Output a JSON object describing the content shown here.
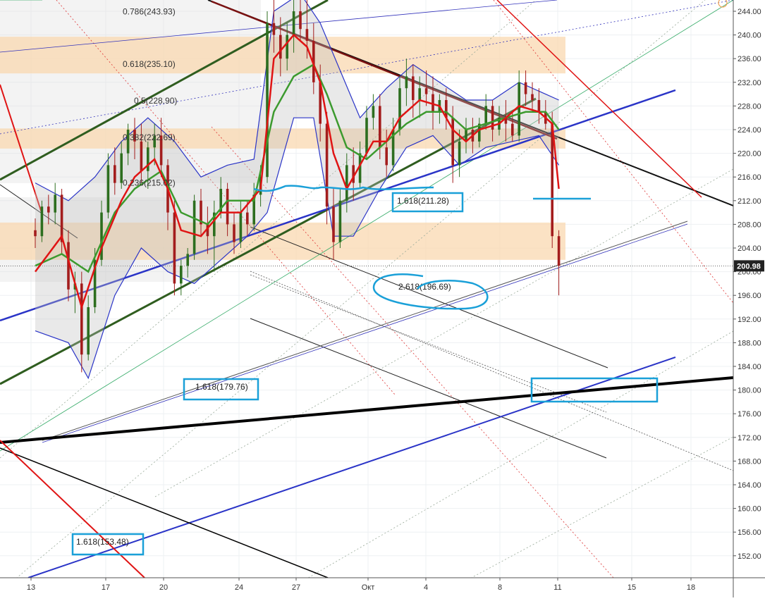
{
  "chart_data": {
    "type": "candlestick",
    "title": "",
    "xlabel": "",
    "ylabel": "",
    "ylim": [
      148,
      246
    ],
    "y_ticks": [
      152,
      156,
      160,
      164,
      168,
      172,
      176,
      180,
      184,
      188,
      192,
      196,
      200,
      204,
      208,
      212,
      216,
      220,
      224,
      228,
      232,
      236,
      240,
      244
    ],
    "x_ticks": [
      "13",
      "17",
      "20",
      "24",
      "27",
      "Окт",
      "4",
      "8",
      "11",
      "15",
      "18"
    ],
    "current_price": {
      "value": 200.98,
      "label": "200.98"
    },
    "fib_levels": [
      {
        "ratio": "0.786",
        "value": 243.93,
        "label": "0.786(243.93)"
      },
      {
        "ratio": "0.618",
        "value": 235.1,
        "label": "0.618(235.10)"
      },
      {
        "ratio": "0.5",
        "value": 228.9,
        "label": "0.5(228.90)"
      },
      {
        "ratio": "0.382",
        "value": 222.69,
        "label": "0.382(222.69)"
      },
      {
        "ratio": "0.236",
        "value": 215.02,
        "label": "0.236(215.02)"
      }
    ],
    "extension_labels": [
      {
        "value": 211.28,
        "label": "1.618(211.28)",
        "boxed": true
      },
      {
        "value": 196.69,
        "label": "2.618(196.69)",
        "boxed": false
      },
      {
        "value": 179.76,
        "label": "1.618(179.76)",
        "boxed": true
      },
      {
        "value": 153.48,
        "label": "1.618(153.48)",
        "boxed": true
      }
    ],
    "zones": [
      {
        "from": 233.5,
        "to": 239.7
      },
      {
        "from": 220.8,
        "to": 224.2
      },
      {
        "from": 202.0,
        "to": 208.3
      }
    ],
    "candles": [
      [
        5,
        207,
        209,
        204,
        206
      ],
      [
        6,
        206,
        212,
        205,
        211
      ],
      [
        7,
        211,
        213,
        208,
        210
      ],
      [
        8,
        210,
        215,
        208,
        213
      ],
      [
        9,
        213,
        214,
        203,
        205
      ],
      [
        10,
        205,
        207,
        195,
        197
      ],
      [
        11,
        197,
        200,
        193,
        198
      ],
      [
        12,
        198,
        200,
        183,
        186
      ],
      [
        13,
        186,
        196,
        185,
        194
      ],
      [
        14,
        194,
        204,
        193,
        202
      ],
      [
        15,
        202,
        212,
        201,
        210
      ],
      [
        16,
        210,
        220,
        209,
        218
      ],
      [
        17,
        218,
        221,
        213,
        215
      ],
      [
        18,
        215,
        222,
        214,
        220
      ],
      [
        19,
        220,
        225,
        218,
        224
      ],
      [
        20,
        224,
        226,
        219,
        222
      ],
      [
        21,
        222,
        225,
        215,
        217
      ],
      [
        22,
        217,
        222,
        214,
        221
      ],
      [
        23,
        221,
        225,
        218,
        223
      ],
      [
        24,
        223,
        226,
        216,
        218
      ],
      [
        25,
        218,
        219,
        207,
        210
      ],
      [
        26,
        210,
        212,
        196,
        198
      ],
      [
        27,
        198,
        202,
        196,
        201
      ],
      [
        28,
        201,
        204,
        199,
        203
      ],
      [
        29,
        203,
        213,
        202,
        212
      ],
      [
        30,
        212,
        214,
        206,
        208
      ],
      [
        31,
        208,
        211,
        203,
        206
      ],
      [
        32,
        206,
        212,
        200,
        210
      ],
      [
        33,
        210,
        216,
        209,
        214
      ],
      [
        34,
        214,
        215,
        206,
        208
      ],
      [
        35,
        208,
        210,
        203,
        205
      ],
      [
        36,
        205,
        212,
        204,
        210
      ],
      [
        37,
        210,
        212,
        206,
        208
      ],
      [
        38,
        208,
        215,
        207,
        213
      ],
      [
        39,
        213,
        218,
        211,
        216
      ],
      [
        40,
        216,
        244,
        215,
        242
      ],
      [
        41,
        242,
        248,
        237,
        240
      ],
      [
        42,
        240,
        243,
        233,
        236
      ],
      [
        43,
        236,
        242,
        234,
        240
      ],
      [
        44,
        240,
        246,
        237,
        244
      ],
      [
        45,
        244,
        248,
        239,
        241
      ],
      [
        46,
        241,
        246,
        236,
        239
      ],
      [
        47,
        239,
        242,
        230,
        232
      ],
      [
        48,
        232,
        235,
        222,
        225
      ],
      [
        49,
        225,
        227,
        208,
        211
      ],
      [
        50,
        211,
        214,
        202,
        205
      ],
      [
        51,
        205,
        214,
        204,
        212
      ],
      [
        52,
        212,
        220,
        210,
        218
      ],
      [
        53,
        218,
        221,
        212,
        215
      ],
      [
        54,
        215,
        222,
        214,
        220
      ],
      [
        55,
        220,
        228,
        219,
        226
      ],
      [
        56,
        226,
        230,
        224,
        228
      ],
      [
        57,
        228,
        230,
        219,
        221
      ],
      [
        58,
        221,
        224,
        216,
        218
      ],
      [
        59,
        218,
        226,
        217,
        224
      ],
      [
        60,
        224,
        233,
        223,
        231
      ],
      [
        61,
        231,
        236,
        228,
        233
      ],
      [
        62,
        233,
        235,
        226,
        229
      ],
      [
        63,
        229,
        233,
        226,
        231
      ],
      [
        64,
        231,
        234,
        228,
        230
      ],
      [
        65,
        230,
        233,
        224,
        227
      ],
      [
        66,
        227,
        230,
        225,
        229
      ],
      [
        67,
        229,
        231,
        224,
        226
      ],
      [
        68,
        226,
        228,
        215,
        218
      ],
      [
        69,
        218,
        224,
        216,
        222
      ],
      [
        70,
        222,
        226,
        220,
        224
      ],
      [
        71,
        224,
        226,
        220,
        222
      ],
      [
        72,
        222,
        226,
        221,
        225
      ],
      [
        73,
        225,
        230,
        224,
        228
      ],
      [
        74,
        228,
        229,
        222,
        224
      ],
      [
        75,
        224,
        228,
        223,
        226
      ],
      [
        76,
        226,
        229,
        222,
        225
      ],
      [
        77,
        225,
        227,
        222,
        223
      ],
      [
        78,
        223,
        234,
        222,
        232
      ],
      [
        79,
        232,
        234,
        228,
        230
      ],
      [
        80,
        230,
        232,
        227,
        229
      ],
      [
        81,
        229,
        231,
        225,
        227
      ],
      [
        82,
        227,
        229,
        224,
        225
      ],
      [
        83,
        225,
        227,
        204,
        206
      ],
      [
        84,
        206,
        207,
        196,
        201
      ]
    ],
    "sma_red_fast": [
      [
        5,
        200
      ],
      [
        9,
        206
      ],
      [
        12,
        194
      ],
      [
        15,
        204
      ],
      [
        18,
        212
      ],
      [
        20,
        216
      ],
      [
        23,
        219
      ],
      [
        25,
        214
      ],
      [
        27,
        207
      ],
      [
        30,
        206
      ],
      [
        33,
        210
      ],
      [
        36,
        210
      ],
      [
        39,
        214
      ],
      [
        41,
        236
      ],
      [
        44,
        240
      ],
      [
        46,
        238
      ],
      [
        48,
        232
      ],
      [
        50,
        220
      ],
      [
        52,
        214
      ],
      [
        54,
        218
      ],
      [
        56,
        222
      ],
      [
        58,
        222
      ],
      [
        60,
        226
      ],
      [
        63,
        229
      ],
      [
        66,
        228
      ],
      [
        68,
        224
      ],
      [
        70,
        222
      ],
      [
        72,
        224
      ],
      [
        75,
        225
      ],
      [
        78,
        228
      ],
      [
        81,
        227
      ],
      [
        83,
        225
      ],
      [
        84,
        214
      ]
    ],
    "sma_green": [
      [
        5,
        201
      ],
      [
        9,
        203
      ],
      [
        13,
        200
      ],
      [
        17,
        210
      ],
      [
        20,
        214
      ],
      [
        24,
        217
      ],
      [
        27,
        210
      ],
      [
        31,
        208
      ],
      [
        34,
        212
      ],
      [
        38,
        212
      ],
      [
        41,
        227
      ],
      [
        44,
        233
      ],
      [
        47,
        235
      ],
      [
        49,
        230
      ],
      [
        52,
        221
      ],
      [
        55,
        219
      ],
      [
        58,
        222
      ],
      [
        61,
        225
      ],
      [
        64,
        227
      ],
      [
        67,
        227
      ],
      [
        70,
        224
      ],
      [
        73,
        225
      ],
      [
        76,
        226
      ],
      [
        79,
        227
      ],
      [
        82,
        227
      ],
      [
        84,
        224
      ]
    ],
    "bb_upper": [
      [
        5,
        215
      ],
      [
        10,
        212
      ],
      [
        14,
        216
      ],
      [
        18,
        222
      ],
      [
        22,
        226
      ],
      [
        26,
        222
      ],
      [
        30,
        216
      ],
      [
        34,
        218
      ],
      [
        38,
        219
      ],
      [
        41,
        244
      ],
      [
        45,
        247
      ],
      [
        48,
        242
      ],
      [
        51,
        234
      ],
      [
        54,
        226
      ],
      [
        58,
        231
      ],
      [
        62,
        235
      ],
      [
        66,
        232
      ],
      [
        70,
        229
      ],
      [
        74,
        229
      ],
      [
        78,
        232
      ],
      [
        82,
        230
      ],
      [
        84,
        229
      ]
    ],
    "bb_lower": [
      [
        5,
        190
      ],
      [
        10,
        188
      ],
      [
        13,
        182
      ],
      [
        17,
        196
      ],
      [
        21,
        204
      ],
      [
        25,
        200
      ],
      [
        29,
        198
      ],
      [
        33,
        202
      ],
      [
        37,
        206
      ],
      [
        40,
        210
      ],
      [
        44,
        226
      ],
      [
        47,
        226
      ],
      [
        50,
        206
      ],
      [
        53,
        206
      ],
      [
        57,
        214
      ],
      [
        61,
        221
      ],
      [
        65,
        223
      ],
      [
        69,
        218
      ],
      [
        73,
        221
      ],
      [
        77,
        222
      ],
      [
        81,
        223
      ],
      [
        84,
        218
      ]
    ],
    "annotation_colors": {
      "up": "#2d6e1f",
      "down": "#a31d1d",
      "fib": "#f9d8b0",
      "mark": "#1aa0d8",
      "trend_blue": "#2a34c7",
      "trend_red": "#e01414",
      "trend_green": "#2f5d1f"
    }
  }
}
